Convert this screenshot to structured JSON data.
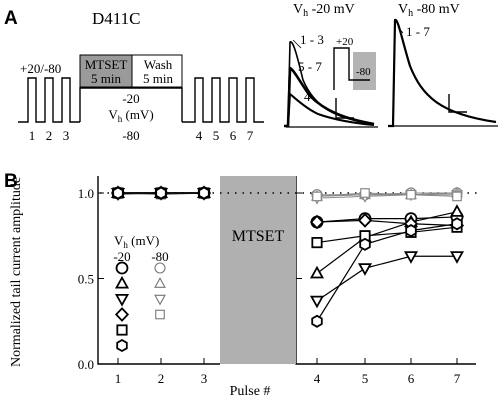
{
  "panel_a": {
    "label": "A",
    "construct": "D411C",
    "protocol": {
      "pulse_voltage_label": "+20/-80",
      "mtset_label": "MTSET",
      "mtset_duration": "5 min",
      "wash_label": "Wash",
      "wash_duration": "5 min",
      "hold_value": "-20",
      "hold_label": "V",
      "hold_sub": "h",
      "hold_unit": " (mV)",
      "baseline_value": "-80",
      "pulse_numbers": [
        "1",
        "2",
        "3",
        "4",
        "5",
        "6",
        "7"
      ]
    },
    "traces_left": {
      "title_v": "V",
      "title_sub": "h",
      "title_rest": " -20 mV",
      "labels": [
        "1 - 3",
        "5 - 7",
        "4"
      ],
      "inset_top": "+20",
      "inset_bottom": "-80"
    },
    "traces_right": {
      "title_v": "V",
      "title_sub": "h",
      "title_rest": " -80 mV",
      "labels": [
        "1 - 7"
      ]
    }
  },
  "panel_b": {
    "label": "B",
    "mtset_label": "MTSET",
    "legend": {
      "title_v": "V",
      "title_sub": "h",
      "title_rest": " (mV)",
      "col_minus20": "-20",
      "col_minus80": "-80"
    }
  },
  "chart_data": {
    "type": "line",
    "xlabel": "Pulse #",
    "ylabel": "Normalized tail current amplitude",
    "x_ticks": [
      "1",
      "2",
      "3",
      "4",
      "5",
      "6",
      "7"
    ],
    "y_ticks": [
      "0.0",
      "0.5",
      "1.0"
    ],
    "ylim": [
      0,
      1.1
    ],
    "xlim": [
      0.6,
      7.45
    ],
    "reference_line": 1.0,
    "series_minus80": [
      {
        "marker": "circle",
        "values": [
          [
            1,
            1.0
          ],
          [
            2,
            1.0
          ],
          [
            3,
            1.0
          ],
          [
            4,
            0.99
          ],
          [
            5,
            0.99
          ],
          [
            6,
            1.0
          ],
          [
            7,
            1.0
          ]
        ]
      },
      {
        "marker": "triangle-up",
        "values": [
          [
            1,
            1.0
          ],
          [
            2,
            1.0
          ],
          [
            3,
            1.0
          ],
          [
            4,
            0.98
          ],
          [
            5,
            0.99
          ],
          [
            6,
            0.99
          ],
          [
            7,
            1.0
          ]
        ]
      },
      {
        "marker": "triangle-down",
        "values": [
          [
            1,
            0.99
          ],
          [
            2,
            1.0
          ],
          [
            3,
            1.0
          ],
          [
            4,
            0.97
          ],
          [
            5,
            0.98
          ],
          [
            6,
            0.99
          ],
          [
            7,
            0.99
          ]
        ]
      },
      {
        "marker": "square",
        "values": [
          [
            1,
            1.0
          ],
          [
            2,
            0.99
          ],
          [
            3,
            1.0
          ],
          [
            4,
            0.98
          ],
          [
            5,
            1.0
          ],
          [
            6,
            0.99
          ],
          [
            7,
            0.98
          ]
        ]
      }
    ],
    "series_minus20": [
      {
        "marker": "circle",
        "values": [
          [
            1,
            1.0
          ],
          [
            2,
            1.0
          ],
          [
            3,
            1.0
          ],
          [
            4,
            0.83
          ],
          [
            5,
            0.85
          ],
          [
            6,
            0.85
          ],
          [
            7,
            0.86
          ]
        ]
      },
      {
        "marker": "triangle-up",
        "values": [
          [
            1,
            1.0
          ],
          [
            2,
            1.0
          ],
          [
            3,
            1.0
          ],
          [
            4,
            0.53
          ],
          [
            5,
            0.74
          ],
          [
            6,
            0.83
          ],
          [
            7,
            0.89
          ]
        ]
      },
      {
        "marker": "triangle-down",
        "values": [
          [
            1,
            1.0
          ],
          [
            2,
            1.0
          ],
          [
            3,
            1.0
          ],
          [
            4,
            0.37
          ],
          [
            5,
            0.56
          ],
          [
            6,
            0.63
          ],
          [
            7,
            0.63
          ]
        ]
      },
      {
        "marker": "diamond",
        "values": [
          [
            1,
            1.0
          ],
          [
            2,
            1.0
          ],
          [
            3,
            1.0
          ],
          [
            4,
            0.83
          ],
          [
            5,
            0.84
          ],
          [
            6,
            0.82
          ],
          [
            7,
            0.81
          ]
        ]
      },
      {
        "marker": "square",
        "values": [
          [
            1,
            1.0
          ],
          [
            2,
            1.0
          ],
          [
            3,
            1.0
          ],
          [
            4,
            0.71
          ],
          [
            5,
            0.75
          ],
          [
            6,
            0.77
          ],
          [
            7,
            0.8
          ]
        ]
      },
      {
        "marker": "hexagon",
        "values": [
          [
            1,
            1.0
          ],
          [
            2,
            1.0
          ],
          [
            3,
            1.0
          ],
          [
            4,
            0.25
          ],
          [
            5,
            0.7
          ],
          [
            6,
            0.78
          ],
          [
            7,
            0.82
          ]
        ]
      }
    ]
  }
}
